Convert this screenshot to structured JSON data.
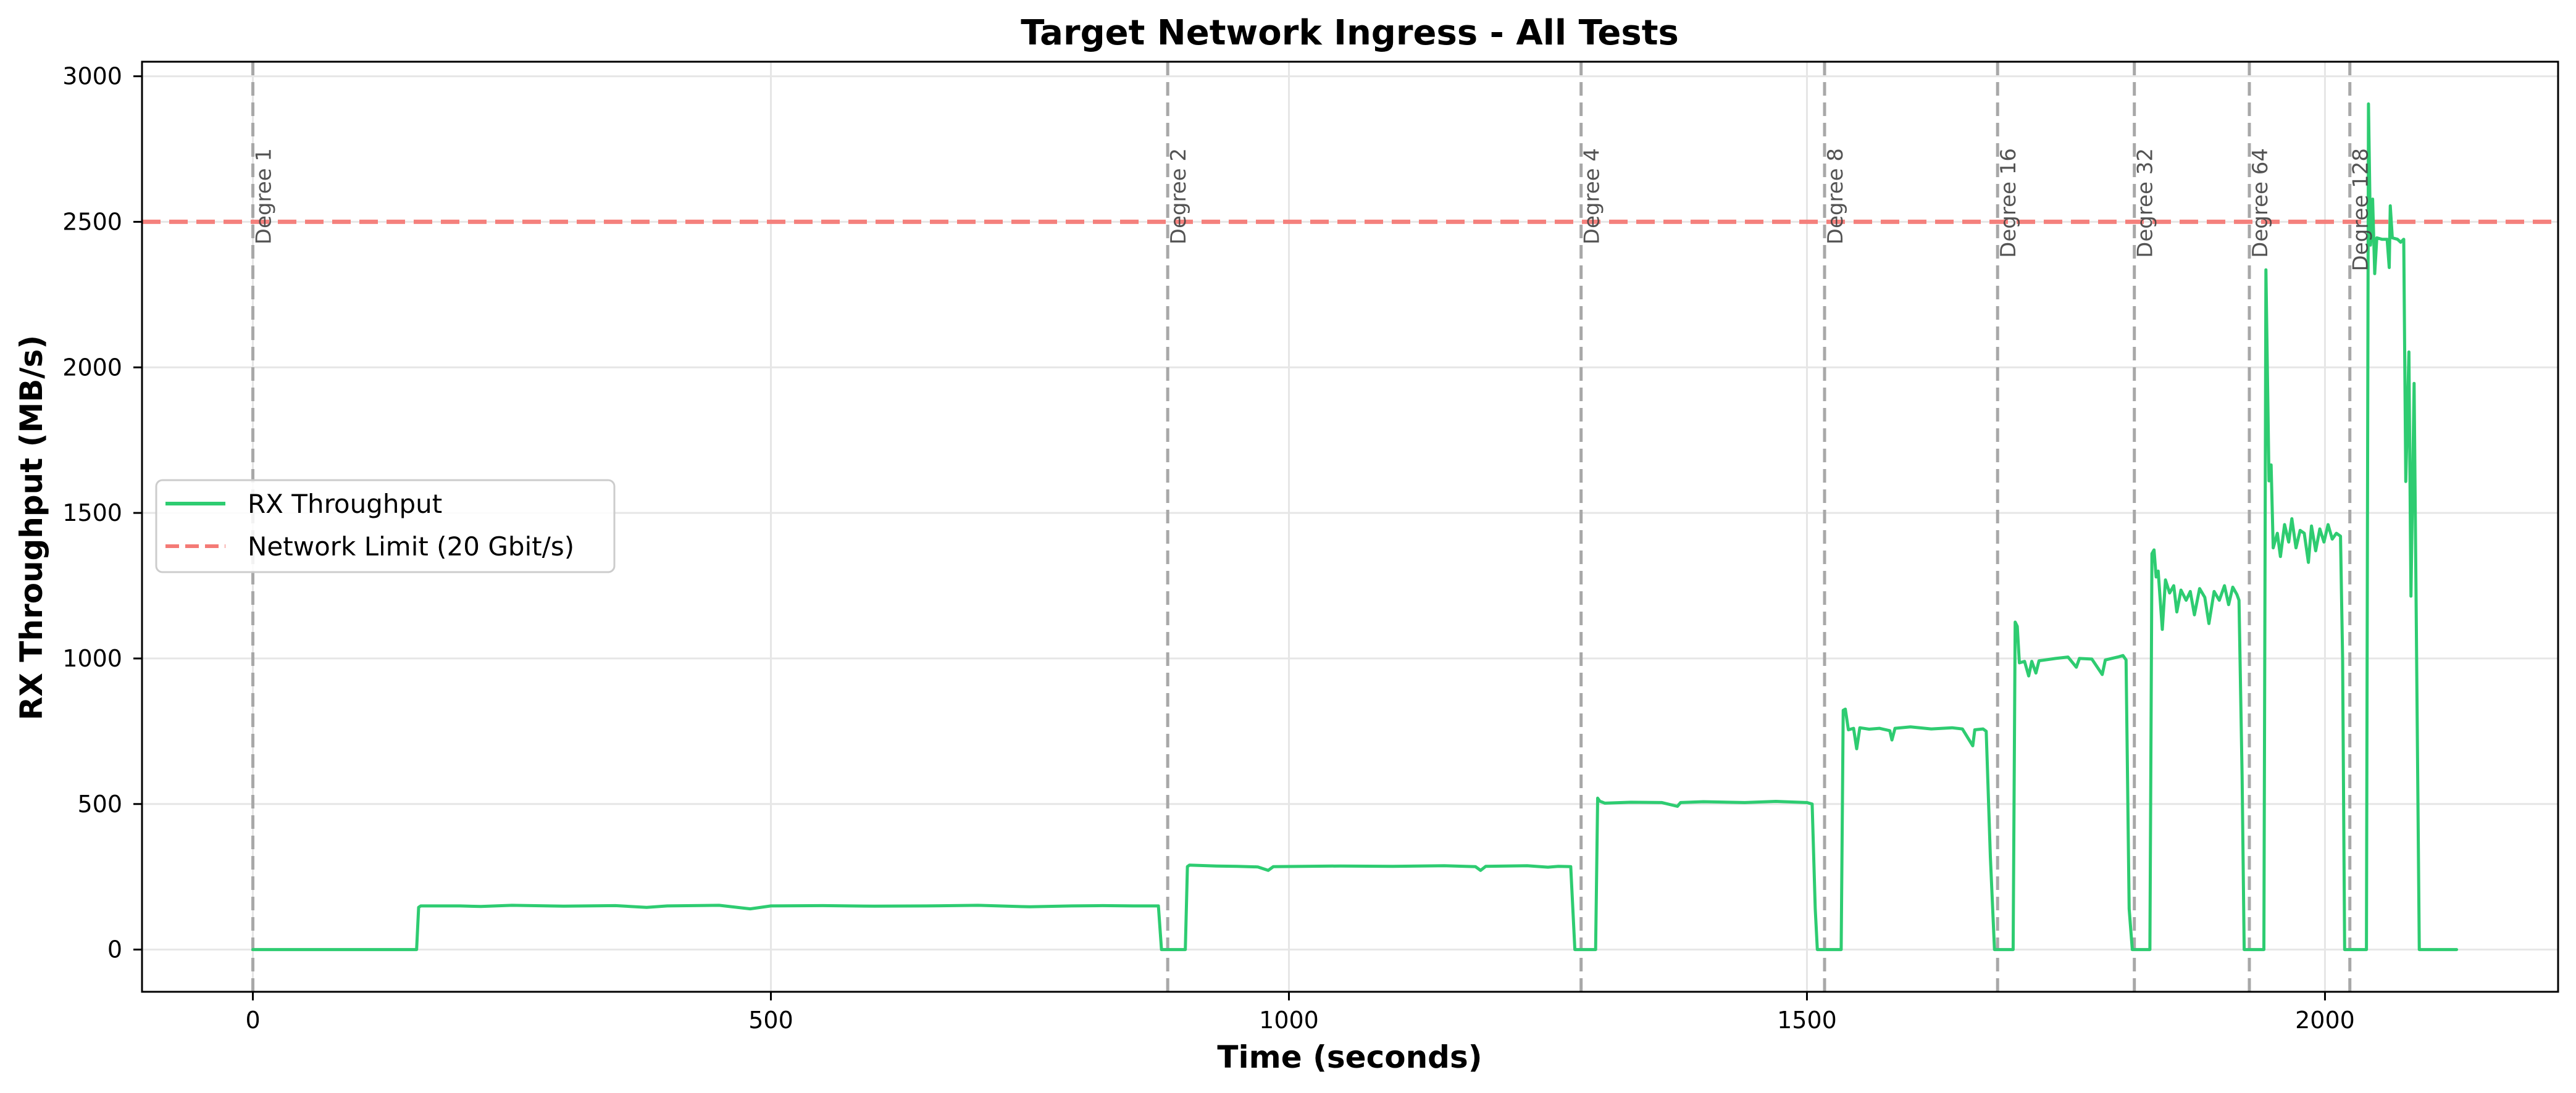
{
  "chart_data": {
    "type": "line",
    "title": "Target Network Ingress - All Tests",
    "xlabel": "Time (seconds)",
    "ylabel": "RX Throughput (MB/s)",
    "xlim": [
      -107,
      2225
    ],
    "ylim": [
      -145,
      3050
    ],
    "xticks": [
      0,
      500,
      1000,
      1500,
      2000
    ],
    "yticks": [
      0,
      500,
      1000,
      1500,
      2000,
      2500,
      3000
    ],
    "xtick_labels": [
      "0",
      "500",
      "1000",
      "1500",
      "2000"
    ],
    "ytick_labels": [
      "0",
      "500",
      "1000",
      "1500",
      "2000",
      "2500",
      "3000"
    ],
    "grid": true,
    "legend_position": "center left",
    "legend": [
      {
        "label": "RX Throughput",
        "style": "solid",
        "color": "#2ecc71"
      },
      {
        "label": "Network Limit (20 Gbit/s)",
        "style": "dashed",
        "color": "#f47a76"
      }
    ],
    "series": [
      {
        "name": "RX Throughput",
        "color": "#2ecc71",
        "points": [
          [
            0,
            0
          ],
          [
            158,
            0
          ],
          [
            160,
            145
          ],
          [
            162,
            150
          ],
          [
            200,
            150
          ],
          [
            220,
            148
          ],
          [
            250,
            152
          ],
          [
            300,
            149
          ],
          [
            350,
            151
          ],
          [
            380,
            145
          ],
          [
            400,
            150
          ],
          [
            450,
            152
          ],
          [
            480,
            140
          ],
          [
            500,
            150
          ],
          [
            550,
            151
          ],
          [
            600,
            149
          ],
          [
            650,
            150
          ],
          [
            700,
            152
          ],
          [
            750,
            147
          ],
          [
            790,
            150
          ],
          [
            820,
            151
          ],
          [
            850,
            150
          ],
          [
            874,
            150
          ],
          [
            877,
            0
          ],
          [
            900,
            0
          ],
          [
            902,
            285
          ],
          [
            904,
            290
          ],
          [
            930,
            287
          ],
          [
            950,
            286
          ],
          [
            970,
            284
          ],
          [
            980,
            272
          ],
          [
            985,
            285
          ],
          [
            1050,
            287
          ],
          [
            1100,
            286
          ],
          [
            1150,
            288
          ],
          [
            1180,
            285
          ],
          [
            1185,
            272
          ],
          [
            1190,
            286
          ],
          [
            1230,
            288
          ],
          [
            1250,
            283
          ],
          [
            1260,
            286
          ],
          [
            1272,
            285
          ],
          [
            1276,
            0
          ],
          [
            1296,
            0
          ],
          [
            1298,
            520
          ],
          [
            1300,
            510
          ],
          [
            1305,
            503
          ],
          [
            1330,
            506
          ],
          [
            1360,
            505
          ],
          [
            1375,
            492
          ],
          [
            1378,
            505
          ],
          [
            1400,
            508
          ],
          [
            1440,
            505
          ],
          [
            1470,
            509
          ],
          [
            1500,
            505
          ],
          [
            1505,
            500
          ],
          [
            1508,
            140
          ],
          [
            1510,
            0
          ],
          [
            1533,
            0
          ],
          [
            1535,
            822
          ],
          [
            1537,
            826
          ],
          [
            1540,
            755
          ],
          [
            1545,
            760
          ],
          [
            1548,
            690
          ],
          [
            1551,
            762
          ],
          [
            1560,
            757
          ],
          [
            1570,
            760
          ],
          [
            1580,
            752
          ],
          [
            1582,
            720
          ],
          [
            1585,
            760
          ],
          [
            1600,
            765
          ],
          [
            1620,
            758
          ],
          [
            1640,
            762
          ],
          [
            1650,
            758
          ],
          [
            1660,
            700
          ],
          [
            1662,
            755
          ],
          [
            1670,
            758
          ],
          [
            1673,
            750
          ],
          [
            1677,
            320
          ],
          [
            1681,
            0
          ],
          [
            1699,
            0
          ],
          [
            1701,
            1125
          ],
          [
            1703,
            1110
          ],
          [
            1705,
            985
          ],
          [
            1710,
            990
          ],
          [
            1714,
            940
          ],
          [
            1717,
            990
          ],
          [
            1721,
            950
          ],
          [
            1724,
            992
          ],
          [
            1740,
            1000
          ],
          [
            1752,
            1005
          ],
          [
            1760,
            970
          ],
          [
            1763,
            1000
          ],
          [
            1775,
            998
          ],
          [
            1785,
            945
          ],
          [
            1788,
            995
          ],
          [
            1800,
            1005
          ],
          [
            1805,
            1010
          ],
          [
            1808,
            995
          ],
          [
            1811,
            140
          ],
          [
            1814,
            0
          ],
          [
            1831,
            0
          ],
          [
            1833,
            1360
          ],
          [
            1835,
            1373
          ],
          [
            1837,
            1280
          ],
          [
            1839,
            1300
          ],
          [
            1843,
            1100
          ],
          [
            1846,
            1270
          ],
          [
            1850,
            1225
          ],
          [
            1854,
            1250
          ],
          [
            1857,
            1160
          ],
          [
            1861,
            1235
          ],
          [
            1866,
            1200
          ],
          [
            1870,
            1230
          ],
          [
            1874,
            1150
          ],
          [
            1879,
            1240
          ],
          [
            1884,
            1210
          ],
          [
            1888,
            1120
          ],
          [
            1893,
            1230
          ],
          [
            1898,
            1200
          ],
          [
            1903,
            1250
          ],
          [
            1907,
            1185
          ],
          [
            1911,
            1245
          ],
          [
            1915,
            1220
          ],
          [
            1917,
            1200
          ],
          [
            1920,
            600
          ],
          [
            1922,
            0
          ],
          [
            1941,
            0
          ],
          [
            1943,
            2335
          ],
          [
            1946,
            1610
          ],
          [
            1948,
            1665
          ],
          [
            1950,
            1380
          ],
          [
            1954,
            1430
          ],
          [
            1957,
            1350
          ],
          [
            1961,
            1460
          ],
          [
            1965,
            1400
          ],
          [
            1968,
            1480
          ],
          [
            1972,
            1380
          ],
          [
            1976,
            1440
          ],
          [
            1980,
            1430
          ],
          [
            1984,
            1330
          ],
          [
            1987,
            1455
          ],
          [
            1991,
            1370
          ],
          [
            1995,
            1445
          ],
          [
            1999,
            1400
          ],
          [
            2003,
            1460
          ],
          [
            2007,
            1410
          ],
          [
            2011,
            1430
          ],
          [
            2015,
            1420
          ],
          [
            2017,
            1000
          ],
          [
            2019,
            0
          ],
          [
            2040,
            0
          ],
          [
            2042,
            2905
          ],
          [
            2044,
            2420
          ],
          [
            2046,
            2578
          ],
          [
            2048,
            2322
          ],
          [
            2050,
            2445
          ],
          [
            2055,
            2440
          ],
          [
            2060,
            2440
          ],
          [
            2062,
            2343
          ],
          [
            2063,
            2555
          ],
          [
            2065,
            2445
          ],
          [
            2070,
            2440
          ],
          [
            2073,
            2430
          ],
          [
            2076,
            2440
          ],
          [
            2078,
            1608
          ],
          [
            2081,
            2053
          ],
          [
            2083,
            1214
          ],
          [
            2086,
            1945
          ],
          [
            2091,
            0
          ],
          [
            2127,
            0
          ]
        ]
      },
      {
        "name": "Network Limit (20 Gbit/s)",
        "color": "#f47a76",
        "style": "dashed",
        "constant": 2500
      }
    ],
    "annotations": [
      {
        "label": "Degree 1",
        "x": 0
      },
      {
        "label": "Degree 2",
        "x": 883
      },
      {
        "label": "Degree 4",
        "x": 1282
      },
      {
        "label": "Degree 8",
        "x": 1517
      },
      {
        "label": "Degree 16",
        "x": 1684
      },
      {
        "label": "Degree 32",
        "x": 1816
      },
      {
        "label": "Degree 64",
        "x": 1927
      },
      {
        "label": "Degree 128",
        "x": 2024
      }
    ]
  }
}
